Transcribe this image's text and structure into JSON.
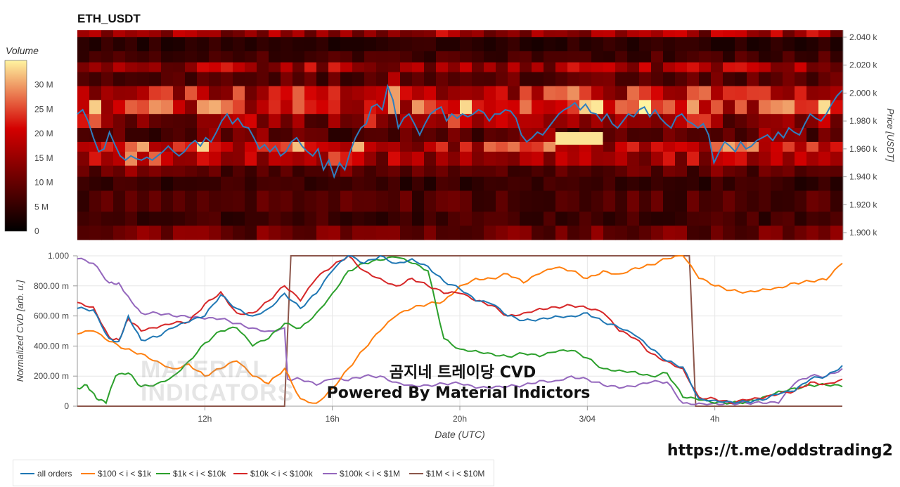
{
  "page": {
    "title": "ETH_USDT",
    "overlay_title": "곰지네 트레이당 CVD",
    "overlay_subtitle": "Powered By Material Indictors",
    "url": "https://t.me/oddstrading2",
    "watermark": [
      "MATERIAL",
      "INDICATORS"
    ]
  },
  "colors": {
    "heat_low": "#000000",
    "heat_mid": "#d40000",
    "heat_high": "#fff4a0",
    "price_line": "#2e7fc0",
    "all_orders": "#1f77b4",
    "s100_1k": "#ff7f0e",
    "s1k_10k": "#2ca02c",
    "s10k_100k": "#d62728",
    "s100k_1m": "#9467bd",
    "s1m_10m": "#8c564b"
  },
  "chart_data": [
    {
      "type": "heatmap",
      "title": "ETH_USDT",
      "ylabel": "Price [USDT]",
      "ylim": [
        1895,
        2045
      ],
      "yticks": [
        1900,
        1920,
        1940,
        1960,
        1980,
        2000,
        2020,
        2040
      ],
      "ytick_labels": [
        "1.900 k",
        "1.920 k",
        "1.940 k",
        "1.960 k",
        "1.980 k",
        "2.000 k",
        "2.020 k",
        "2.040 k"
      ],
      "colorbar": {
        "title": "Volume",
        "ticks": [
          0,
          5,
          10,
          15,
          20,
          25,
          30
        ],
        "tick_labels": [
          "0",
          "5 M",
          "10 M",
          "15 M",
          "20 M",
          "25 M",
          "30 M"
        ],
        "max": 35
      },
      "price_bands": [
        {
          "lo": 2040,
          "hi": 2045,
          "intensity": 0.45
        },
        {
          "lo": 2030,
          "hi": 2040,
          "intensity": 0.12
        },
        {
          "lo": 2022,
          "hi": 2030,
          "intensity": 0.2
        },
        {
          "lo": 2015,
          "hi": 2022,
          "intensity": 0.45
        },
        {
          "lo": 2005,
          "hi": 2015,
          "intensity": 0.25
        },
        {
          "lo": 1995,
          "hi": 2005,
          "intensity": 0.55
        },
        {
          "lo": 1985,
          "hi": 1995,
          "intensity": 0.62
        },
        {
          "lo": 1975,
          "hi": 1985,
          "intensity": 0.35
        },
        {
          "lo": 1965,
          "hi": 1975,
          "intensity": 0.2
        },
        {
          "lo": 1958,
          "hi": 1965,
          "intensity": 0.55
        },
        {
          "lo": 1948,
          "hi": 1958,
          "intensity": 0.45
        },
        {
          "lo": 1940,
          "hi": 1948,
          "intensity": 0.25
        },
        {
          "lo": 1930,
          "hi": 1940,
          "intensity": 0.15
        },
        {
          "lo": 1915,
          "hi": 1930,
          "intensity": 0.22
        },
        {
          "lo": 1905,
          "hi": 1915,
          "intensity": 0.18
        },
        {
          "lo": 1895,
          "hi": 1905,
          "intensity": 0.3
        }
      ],
      "hot_spot": {
        "price_lo": 1963,
        "price_hi": 1972,
        "x_from": 0.625,
        "x_to": 0.687,
        "value": 34
      },
      "price": [
        1985,
        1988,
        1980,
        1968,
        1958,
        1960,
        1972,
        1963,
        1955,
        1952,
        1955,
        1953,
        1952,
        1954,
        1952,
        1955,
        1958,
        1962,
        1958,
        1955,
        1958,
        1963,
        1966,
        1962,
        1968,
        1965,
        1972,
        1980,
        1985,
        1978,
        1982,
        1976,
        1975,
        1968,
        1960,
        1963,
        1958,
        1962,
        1955,
        1958,
        1965,
        1968,
        1962,
        1958,
        1955,
        1960,
        1945,
        1952,
        1940,
        1950,
        1945,
        1958,
        1968,
        1975,
        1978,
        1990,
        1992,
        1988,
        2005,
        1995,
        1975,
        1982,
        1985,
        1978,
        1970,
        1978,
        1985,
        1988,
        1990,
        1980,
        1985,
        1982,
        1985,
        1983,
        1985,
        1988,
        1986,
        1980,
        1985,
        1985,
        1988,
        1987,
        1982,
        1970,
        1965,
        1968,
        1972,
        1970,
        1975,
        1980,
        1985,
        1988,
        1990,
        1993,
        1988,
        1992,
        1986,
        1985,
        1980,
        1985,
        1978,
        1975,
        1980,
        1985,
        1983,
        1988,
        1990,
        1983,
        1988,
        1982,
        1978,
        1975,
        1983,
        1985,
        1980,
        1978,
        1975,
        1978,
        1970,
        1950,
        1958,
        1965,
        1962,
        1958,
        1965,
        1960,
        1962,
        1966,
        1968,
        1970,
        1966,
        1972,
        1968,
        1975,
        1972,
        1970,
        1978,
        1985,
        1982,
        1980,
        1985,
        1992,
        1998,
        2002
      ],
      "x_label": "Date (UTC)"
    },
    {
      "type": "line",
      "ylabel": "Normalized CVD [arb. u.]",
      "xlabel": "Date (UTC)",
      "ylim": [
        0,
        1
      ],
      "yticks": [
        0,
        0.2,
        0.4,
        0.6,
        0.8,
        1.0
      ],
      "ytick_labels": [
        "0",
        "200.00 m",
        "400.00 m",
        "600.00 m",
        "800.00 m",
        "1.000"
      ],
      "xlim": [
        8,
        32
      ],
      "xticks": [
        12,
        16,
        20,
        24,
        28
      ],
      "xtick_labels": [
        "12h",
        "16h",
        "20h",
        "3/04",
        "4h"
      ],
      "series": [
        {
          "name": "all orders",
          "color_key": "all_orders",
          "x": [
            8,
            8.5,
            9,
            9.3,
            9.6,
            10,
            10.5,
            11,
            11.5,
            12,
            12.5,
            13,
            13.5,
            14,
            14.5,
            15,
            15.5,
            16,
            16.5,
            17,
            17.5,
            18,
            18.5,
            19,
            19.5,
            20,
            20.5,
            21,
            21.5,
            22,
            22.5,
            23,
            23.5,
            24,
            24.5,
            25,
            25.5,
            26,
            26.5,
            27,
            27.5,
            28,
            28.5,
            29,
            29.5,
            30,
            30.5,
            31,
            31.5,
            32
          ],
          "y": [
            0.65,
            0.64,
            0.45,
            0.43,
            0.6,
            0.44,
            0.46,
            0.52,
            0.56,
            0.6,
            0.74,
            0.65,
            0.6,
            0.65,
            0.75,
            0.65,
            0.75,
            0.9,
            1.0,
            0.95,
            1.0,
            0.95,
            0.98,
            0.93,
            0.83,
            0.78,
            0.7,
            0.68,
            0.6,
            0.57,
            0.58,
            0.6,
            0.6,
            0.62,
            0.56,
            0.52,
            0.47,
            0.38,
            0.3,
            0.26,
            0.05,
            0.04,
            0.03,
            0.03,
            0.04,
            0.08,
            0.1,
            0.18,
            0.2,
            0.27
          ]
        },
        {
          "name": "$100 < i < $1k",
          "color_key": "s100_1k",
          "x": [
            8,
            8.5,
            9,
            9.5,
            10,
            10.5,
            11,
            11.5,
            12,
            12.5,
            13,
            13.5,
            14,
            14.5,
            15,
            15.5,
            16,
            16.5,
            17,
            17.5,
            18,
            18.5,
            19,
            19.5,
            20,
            20.5,
            21,
            21.5,
            22,
            22.5,
            23,
            23.5,
            24,
            24.5,
            25,
            25.5,
            26,
            26.5,
            27,
            27.5,
            28,
            28.5,
            29,
            29.5,
            30,
            30.5,
            31,
            31.5,
            32
          ],
          "y": [
            0.48,
            0.5,
            0.43,
            0.38,
            0.35,
            0.3,
            0.25,
            0.28,
            0.2,
            0.25,
            0.3,
            0.2,
            0.15,
            0.25,
            0.05,
            0.02,
            0.12,
            0.25,
            0.38,
            0.5,
            0.6,
            0.65,
            0.68,
            0.7,
            0.8,
            0.85,
            0.85,
            0.88,
            0.82,
            0.88,
            0.92,
            0.9,
            0.85,
            0.9,
            0.88,
            0.92,
            0.94,
            0.98,
            1.0,
            0.85,
            0.8,
            0.77,
            0.76,
            0.78,
            0.79,
            0.82,
            0.83,
            0.84,
            0.95
          ]
        },
        {
          "name": "$1k < i < $10k",
          "color_key": "s1k_10k",
          "x": [
            8,
            8.3,
            8.6,
            8.9,
            9.2,
            9.6,
            10,
            10.5,
            11,
            11.5,
            12,
            12.5,
            13,
            13.5,
            14,
            14.5,
            15,
            15.5,
            16,
            16.5,
            17,
            17.5,
            18,
            18.5,
            19,
            19.5,
            20,
            20.5,
            21,
            21.5,
            22,
            22.5,
            23,
            23.5,
            24,
            24.5,
            25,
            25.5,
            26,
            26.5,
            27,
            27.5,
            28,
            28.5,
            29,
            29.5,
            30,
            30.5,
            31,
            31.5,
            32
          ],
          "y": [
            0.12,
            0.14,
            0.05,
            0.02,
            0.2,
            0.22,
            0.13,
            0.15,
            0.2,
            0.3,
            0.42,
            0.5,
            0.52,
            0.4,
            0.45,
            0.55,
            0.52,
            0.62,
            0.75,
            0.9,
            0.95,
            0.97,
            0.99,
            0.95,
            0.9,
            0.45,
            0.38,
            0.37,
            0.35,
            0.33,
            0.35,
            0.33,
            0.36,
            0.37,
            0.32,
            0.25,
            0.24,
            0.23,
            0.2,
            0.22,
            0.06,
            0.04,
            0.02,
            0.02,
            0.03,
            0.06,
            0.1,
            0.12,
            0.14,
            0.14,
            0.13
          ]
        },
        {
          "name": "$10k < i < $100k",
          "color_key": "s10k_100k",
          "x": [
            8,
            8.5,
            9,
            9.3,
            9.6,
            10,
            10.5,
            11,
            11.5,
            12,
            12.5,
            13,
            13.5,
            14,
            14.5,
            15,
            15.5,
            16,
            16.5,
            17,
            17.5,
            18,
            18.5,
            19,
            19.5,
            20,
            20.5,
            21,
            21.5,
            22,
            22.5,
            23,
            23.5,
            24,
            24.5,
            25,
            25.5,
            26,
            26.5,
            27,
            27.5,
            28,
            28.5,
            29,
            29.5,
            30,
            30.5,
            31,
            31.5,
            32
          ],
          "y": [
            0.69,
            0.66,
            0.46,
            0.44,
            0.58,
            0.5,
            0.52,
            0.55,
            0.56,
            0.68,
            0.76,
            0.62,
            0.62,
            0.7,
            0.8,
            0.7,
            0.85,
            0.93,
            1.0,
            0.9,
            0.85,
            0.8,
            0.85,
            0.8,
            0.75,
            0.75,
            0.7,
            0.67,
            0.6,
            0.62,
            0.65,
            0.66,
            0.67,
            0.65,
            0.62,
            0.5,
            0.45,
            0.35,
            0.3,
            0.25,
            0.06,
            0.05,
            0.02,
            0.04,
            0.05,
            0.08,
            0.1,
            0.16,
            0.15,
            0.18
          ]
        },
        {
          "name": "$100k < i < $1M",
          "color_key": "s100k_1m",
          "x": [
            8,
            8.5,
            9,
            9.3,
            9.6,
            10,
            10.5,
            11,
            11.5,
            12,
            12.5,
            13,
            13.5,
            14,
            14.5,
            14.6,
            15,
            15.5,
            16,
            16.5,
            17,
            17.5,
            18,
            18.5,
            19,
            19.5,
            20,
            20.5,
            21,
            21.5,
            22,
            22.5,
            23,
            23.5,
            24,
            24.5,
            25,
            25.5,
            26,
            26.5,
            27,
            27.5,
            28,
            28.5,
            29,
            29.5,
            30,
            30.5,
            31,
            31.5,
            32
          ],
          "y": [
            0.98,
            0.95,
            0.82,
            0.82,
            0.73,
            0.62,
            0.62,
            0.6,
            0.59,
            0.58,
            0.58,
            0.55,
            0.52,
            0.5,
            0.52,
            0.18,
            0.18,
            0.14,
            0.18,
            0.17,
            0.2,
            0.2,
            0.16,
            0.14,
            0.14,
            0.15,
            0.15,
            0.12,
            0.12,
            0.13,
            0.14,
            0.17,
            0.17,
            0.2,
            0.18,
            0.14,
            0.12,
            0.13,
            0.16,
            0.16,
            0.02,
            0.02,
            0.02,
            0.02,
            0.02,
            0.02,
            0.02,
            0.15,
            0.2,
            0.2,
            0.25
          ]
        },
        {
          "name": "$1M < i < $10M",
          "color_key": "s1m_10m",
          "x": [
            8,
            14.5,
            14.7,
            27.2,
            27.4,
            32
          ],
          "y": [
            0,
            0,
            1,
            1,
            0,
            0
          ]
        }
      ]
    }
  ],
  "legend": {
    "items": [
      "all orders",
      "$100 < i < $1k",
      "$1k < i < $10k",
      "$10k < i < $100k",
      "$100k < i < $1M",
      "$1M < i < $10M"
    ]
  }
}
